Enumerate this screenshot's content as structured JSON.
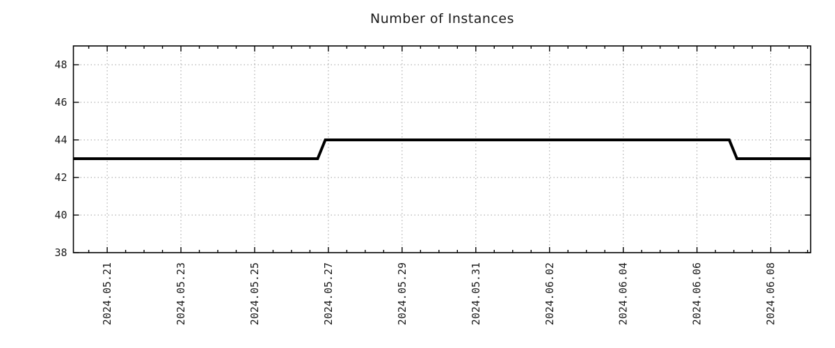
{
  "page": {
    "background_color": "#ffffff",
    "text_color": "#1a1a1a"
  },
  "chart_data": {
    "type": "line",
    "subtype": "step",
    "title": "Number of Instances",
    "xlabel": "",
    "ylabel": "",
    "legend": "none",
    "grid": "dotted",
    "line_color": "#000000",
    "line_width": 4,
    "grid_color": "#9e9e9e",
    "frame_color": "#000000",
    "ylim": [
      38,
      49
    ],
    "y_ticks": [
      38,
      40,
      42,
      44,
      46,
      48
    ],
    "x_range": {
      "min": "2024-05-20T02:00",
      "max": "2024-06-09T02:00"
    },
    "x_minor_tick_hours": 12,
    "x_ticks": [
      {
        "label": "2024.05.21",
        "date": "2024-05-21T00:00"
      },
      {
        "label": "2024.05.23",
        "date": "2024-05-23T00:00"
      },
      {
        "label": "2024.05.25",
        "date": "2024-05-25T00:00"
      },
      {
        "label": "2024.05.27",
        "date": "2024-05-27T00:00"
      },
      {
        "label": "2024.05.29",
        "date": "2024-05-29T00:00"
      },
      {
        "label": "2024.05.31",
        "date": "2024-05-31T00:00"
      },
      {
        "label": "2024.06.02",
        "date": "2024-06-02T00:00"
      },
      {
        "label": "2024.06.04",
        "date": "2024-06-04T00:00"
      },
      {
        "label": "2024.06.06",
        "date": "2024-06-06T00:00"
      },
      {
        "label": "2024.06.08",
        "date": "2024-06-08T00:00"
      }
    ],
    "series": [
      {
        "name": "instances",
        "points": [
          [
            "2024-05-20T02:00",
            43
          ],
          [
            "2024-05-26T17:00",
            43
          ],
          [
            "2024-05-26T22:00",
            44
          ],
          [
            "2024-06-06T21:00",
            44
          ],
          [
            "2024-06-07T02:00",
            43
          ],
          [
            "2024-06-09T02:00",
            43
          ]
        ]
      }
    ]
  }
}
